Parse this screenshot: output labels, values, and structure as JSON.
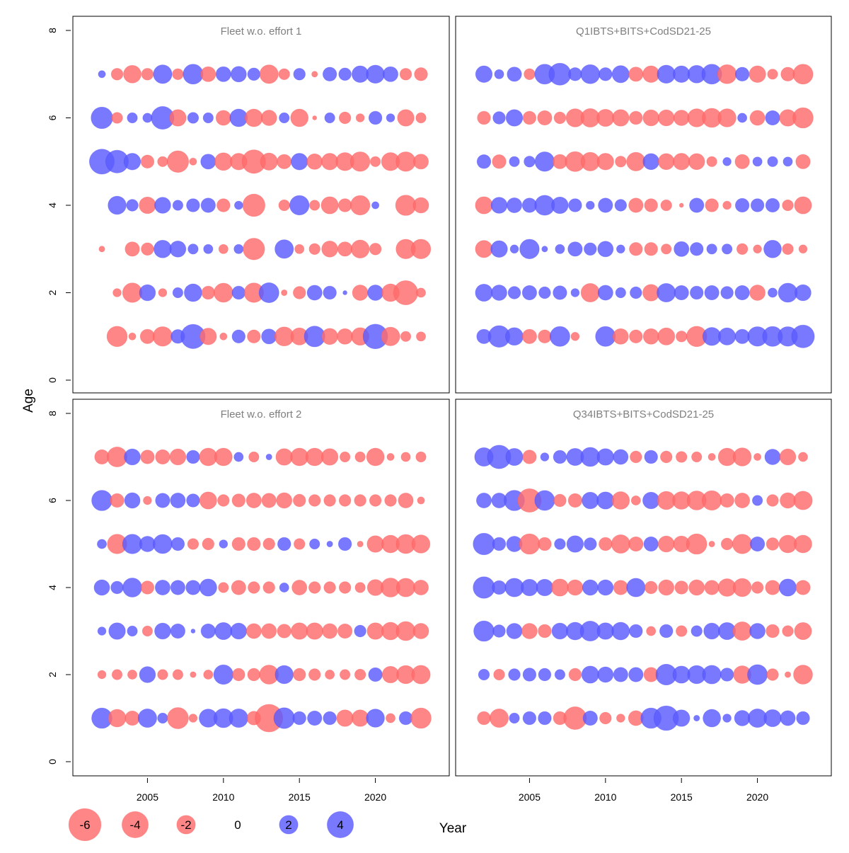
{
  "colors": {
    "positive": "#5b5bff",
    "negative": "#ff6b6b",
    "panel_title": "#7f7f7f",
    "frame": "#000000"
  },
  "labels": {
    "ylabel": "Age",
    "xlabel": "Year"
  },
  "axes": {
    "y_ticks": [
      "0",
      "2",
      "4",
      "6",
      "8"
    ],
    "x_ticks": [
      "2005",
      "2010",
      "2015",
      "2020"
    ],
    "ylim": [
      0,
      8
    ],
    "xlim": [
      2000,
      2025
    ]
  },
  "legend": {
    "values": [
      -6,
      -4,
      -2,
      0,
      2,
      4
    ],
    "labels": [
      "-6",
      "-4",
      "-2",
      "0",
      "2",
      "4"
    ]
  },
  "chart_data": [
    {
      "type": "scatter",
      "title": "Fleet w.o. effort 1",
      "years": [
        2002,
        2003,
        2004,
        2005,
        2006,
        2007,
        2008,
        2009,
        2010,
        2011,
        2012,
        2013,
        2014,
        2015,
        2016,
        2017,
        2018,
        2019,
        2020,
        2021,
        2022,
        2023
      ],
      "ages": [
        1,
        2,
        3,
        4,
        5,
        6,
        7
      ],
      "residuals": {
        "1": [
          0,
          -2.4,
          -0.3,
          -1.2,
          -2.2,
          1.1,
          3.4,
          -1.6,
          -0.3,
          1.0,
          -1.0,
          1.3,
          -2.1,
          -1.7,
          2.5,
          -1.5,
          -1.4,
          -1.8,
          3.5,
          -2.0,
          -0.6,
          -0.5
        ],
        "2": [
          0,
          -0.4,
          -2.2,
          1.5,
          -0.4,
          0.6,
          1.8,
          -1.0,
          -2.1,
          1.0,
          -2.2,
          2.3,
          -0.2,
          -0.9,
          1.3,
          1.0,
          0.1,
          -1.4,
          1.4,
          -1.8,
          -3.4,
          -0.5
        ],
        "3": [
          -0.2,
          0,
          -1.2,
          -0.9,
          1.8,
          1.5,
          0.6,
          0.5,
          -0.5,
          0.5,
          -2.7,
          0,
          2.0,
          -0.5,
          -0.7,
          -1.5,
          -1.2,
          -1.9,
          -0.8,
          0,
          -2.2,
          -2.2
        ],
        "4": [
          0,
          1.9,
          0.8,
          -1.6,
          1.5,
          0.6,
          1.0,
          1.2,
          -1.0,
          0.4,
          -2.9,
          0,
          -0.7,
          2.2,
          -0.6,
          -1.7,
          -1.0,
          -2.2,
          0.3,
          0,
          -2.4,
          -1.4
        ],
        "5": [
          3.6,
          3.0,
          1.6,
          -1.0,
          -0.6,
          -2.7,
          -0.3,
          1.3,
          -1.8,
          -1.6,
          -3.2,
          -1.7,
          -1.2,
          1.6,
          -1.4,
          -1.6,
          -1.9,
          -2.2,
          -0.6,
          -1.9,
          -2.2,
          -1.3
        ],
        "6": [
          2.7,
          -0.7,
          0.6,
          0.5,
          3.0,
          -1.6,
          0.7,
          0.6,
          -1.3,
          1.8,
          -1.8,
          -1.4,
          0.6,
          -1.8,
          -0.1,
          0.6,
          -0.8,
          -0.4,
          1.0,
          0.4,
          -1.6,
          -0.6
        ],
        "7": [
          0.3,
          -0.8,
          -1.8,
          -0.8,
          2.0,
          -0.7,
          2.3,
          -1.3,
          1.3,
          1.4,
          0.9,
          -2.0,
          -0.7,
          0.8,
          -0.2,
          1.1,
          0.9,
          1.6,
          1.9,
          1.3,
          -0.8,
          -1.0
        ]
      }
    },
    {
      "type": "scatter",
      "title": "Q1IBTS+BITS+CodSD21-25",
      "years": [
        2002,
        2003,
        2004,
        2005,
        2006,
        2007,
        2008,
        2009,
        2010,
        2011,
        2012,
        2013,
        2014,
        2015,
        2016,
        2017,
        2018,
        2019,
        2020,
        2021,
        2022,
        2023
      ],
      "ages": [
        1,
        2,
        3,
        4,
        5,
        6,
        7
      ],
      "residuals": {
        "1": [
          1.2,
          2.7,
          1.8,
          -1.2,
          -1.0,
          2.3,
          -0.4,
          0,
          2.3,
          -1.4,
          -1.0,
          -1.4,
          -1.7,
          -0.7,
          -2.4,
          1.9,
          1.7,
          1.2,
          2.2,
          2.3,
          2.2,
          3.0
        ],
        "2": [
          1.7,
          1.4,
          0.9,
          1.2,
          0.8,
          1.1,
          0.4,
          -2.0,
          1.3,
          0.6,
          0.8,
          -1.6,
          2.0,
          1.2,
          1.0,
          1.2,
          0.9,
          1.2,
          -1.4,
          0.5,
          2.1,
          1.5
        ],
        "3": [
          -1.7,
          1.6,
          0.4,
          2.2,
          0.2,
          0.5,
          1.2,
          0.9,
          1.4,
          0.4,
          -1.0,
          -1.0,
          -0.6,
          1.3,
          1.0,
          0.6,
          0.6,
          -0.7,
          -0.4,
          1.8,
          -0.7,
          -0.4
        ],
        "4": [
          -1.7,
          1.5,
          1.3,
          1.2,
          2.3,
          1.6,
          1.0,
          0.4,
          1.2,
          0.8,
          -1.2,
          -1.0,
          -0.7,
          -0.1,
          1.2,
          -1.0,
          -0.4,
          1.1,
          1.0,
          1.1,
          -0.7,
          -1.7
        ],
        "5": [
          1.1,
          -1.1,
          0.6,
          0.7,
          2.2,
          -1.2,
          -2.3,
          -2.0,
          -1.6,
          -0.7,
          -2.0,
          1.5,
          -1.5,
          -1.6,
          -1.5,
          -0.6,
          0.4,
          -1.2,
          0.5,
          0.6,
          0.5,
          -1.2
        ],
        "6": [
          -1.0,
          0.9,
          1.6,
          -1.0,
          -1.2,
          -0.8,
          -1.9,
          -2.0,
          -1.7,
          -1.6,
          -1.0,
          -1.5,
          -1.5,
          -1.4,
          -1.9,
          -2.1,
          -1.9,
          0.5,
          -1.3,
          1.2,
          -1.6,
          -2.4
        ],
        "7": [
          1.6,
          0.5,
          1.2,
          -0.7,
          2.3,
          2.8,
          1.0,
          2.1,
          1.0,
          1.7,
          -1.2,
          -1.6,
          1.9,
          1.6,
          1.8,
          2.3,
          -2.1,
          1.1,
          -1.6,
          -0.6,
          -1.1,
          -2.3
        ]
      }
    },
    {
      "type": "scatter",
      "title": "Fleet w.o. effort 2",
      "years": [
        2002,
        2003,
        2004,
        2005,
        2006,
        2007,
        2008,
        2009,
        2010,
        2011,
        2012,
        2013,
        2014,
        2015,
        2016,
        2017,
        2018,
        2019,
        2020,
        2021,
        2022,
        2023
      ],
      "ages": [
        1,
        2,
        3,
        4,
        5,
        6,
        7
      ],
      "residuals": {
        "1": [
          2.4,
          -1.8,
          -1.2,
          2.0,
          0.6,
          -2.6,
          -0.4,
          1.9,
          2.1,
          2.0,
          -1.1,
          -4.4,
          2.5,
          1.0,
          1.2,
          1.0,
          -1.6,
          -1.6,
          1.9,
          -0.5,
          1.0,
          -2.4
        ],
        "2": [
          -0.4,
          -0.6,
          -0.5,
          1.5,
          -0.6,
          -0.6,
          -0.2,
          -0.5,
          2.2,
          -0.9,
          -0.9,
          -2.1,
          1.9,
          -0.9,
          -0.8,
          -0.5,
          -0.6,
          -0.7,
          1.1,
          -1.6,
          -1.9,
          -2.0
        ],
        "3": [
          0.4,
          1.6,
          0.6,
          -0.6,
          1.5,
          1.2,
          0.1,
          1.2,
          1.7,
          1.5,
          -1.3,
          -1.3,
          -1.1,
          -1.6,
          -1.6,
          -1.3,
          -1.2,
          0.8,
          -1.6,
          -1.8,
          -2.1,
          -1.4
        ],
        "4": [
          1.4,
          0.9,
          2.1,
          -1.0,
          1.3,
          1.2,
          1.2,
          1.7,
          -0.6,
          -1.2,
          -0.8,
          -0.8,
          0.5,
          -1.3,
          -0.8,
          -0.8,
          -0.8,
          -0.6,
          -1.5,
          -2.1,
          -2.0,
          -1.3
        ],
        "5": [
          0.5,
          -2.2,
          2.2,
          1.4,
          2.1,
          1.0,
          -0.7,
          -0.8,
          0.4,
          -1.0,
          -1.0,
          -0.8,
          1.0,
          -0.7,
          0.6,
          0.2,
          1.0,
          -0.2,
          -1.6,
          -1.8,
          -2.1,
          -1.9
        ],
        "6": [
          2.4,
          -1.1,
          1.4,
          -0.4,
          1.2,
          1.3,
          1.0,
          -1.7,
          -0.8,
          -1.0,
          -1.3,
          -1.2,
          -1.4,
          -0.9,
          -0.8,
          -0.8,
          -0.8,
          -0.8,
          -0.8,
          -0.8,
          -1.3,
          -0.3
        ],
        "7": [
          -1.2,
          -2.3,
          1.5,
          -1.1,
          -1.2,
          -1.5,
          1.0,
          -1.8,
          -1.8,
          0.5,
          -0.6,
          0.2,
          -1.6,
          -1.8,
          -1.8,
          -1.6,
          -0.6,
          -0.6,
          -1.8,
          -0.3,
          -0.5,
          -0.6
        ]
      }
    },
    {
      "type": "scatter",
      "title": "Q34IBTS+BITS+CodSD21-25",
      "years": [
        2002,
        2003,
        2004,
        2005,
        2006,
        2007,
        2008,
        2009,
        2010,
        2011,
        2012,
        2013,
        2014,
        2015,
        2016,
        2017,
        2018,
        2019,
        2020,
        2021,
        2022,
        2023
      ],
      "ages": [
        1,
        2,
        3,
        4,
        5,
        6,
        7
      ],
      "residuals": {
        "1": [
          -1.0,
          -2.0,
          0.6,
          1.0,
          1.0,
          -1.0,
          -3.0,
          1.2,
          -0.8,
          -0.4,
          -1.3,
          2.4,
          3.5,
          1.6,
          0.2,
          1.8,
          0.4,
          1.4,
          2.0,
          1.7,
          1.3,
          1.0
        ],
        "2": [
          0.7,
          -0.7,
          0.8,
          1.0,
          0.9,
          0.6,
          -0.9,
          1.7,
          1.4,
          1.2,
          1.2,
          -1.2,
          2.5,
          1.7,
          1.9,
          2.0,
          1.0,
          -1.8,
          2.3,
          -0.8,
          -0.2,
          -2.1
        ],
        "3": [
          2.4,
          0.9,
          1.4,
          -1.4,
          -1.0,
          1.5,
          1.8,
          2.3,
          1.6,
          1.8,
          1.0,
          -0.5,
          1.0,
          -0.7,
          0.7,
          1.5,
          1.7,
          -2.0,
          1.4,
          -1.0,
          -0.7,
          -1.7
        ],
        "4": [
          2.7,
          1.1,
          2.0,
          1.6,
          1.6,
          -1.7,
          -1.4,
          1.4,
          1.4,
          -1.2,
          2.0,
          -0.9,
          -1.4,
          -1.0,
          -1.4,
          -1.2,
          -1.8,
          -1.9,
          -0.8,
          -1.2,
          1.7,
          -1.2
        ],
        "5": [
          2.7,
          1.0,
          1.4,
          -2.4,
          -1.0,
          0.7,
          1.6,
          0.9,
          -1.0,
          -2.0,
          -1.2,
          1.2,
          -1.5,
          -1.5,
          -2.4,
          -0.2,
          -0.8,
          -2.2,
          1.2,
          -0.9,
          -1.8,
          -1.8
        ],
        "6": [
          1.3,
          1.3,
          2.4,
          -3.2,
          2.3,
          -0.9,
          -1.1,
          1.6,
          1.7,
          -1.8,
          -0.5,
          1.6,
          -1.9,
          -1.8,
          -2.1,
          -2.2,
          -1.1,
          -1.3,
          0.6,
          -0.8,
          -1.4,
          -2.0
        ],
        "7": [
          2.0,
          3.2,
          1.7,
          -1.1,
          0.4,
          1.0,
          1.7,
          2.1,
          1.6,
          1.3,
          -0.8,
          1.0,
          -0.8,
          -0.7,
          -0.6,
          -0.3,
          -1.8,
          -1.9,
          -0.3,
          1.4,
          -1.5,
          -0.5
        ]
      }
    }
  ]
}
